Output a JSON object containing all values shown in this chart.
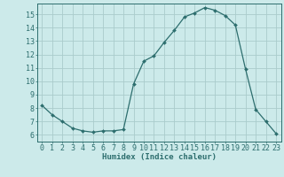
{
  "x": [
    0,
    1,
    2,
    3,
    4,
    5,
    6,
    7,
    8,
    9,
    10,
    11,
    12,
    13,
    14,
    15,
    16,
    17,
    18,
    19,
    20,
    21,
    22,
    23
  ],
  "y": [
    8.2,
    7.5,
    7.0,
    6.5,
    6.3,
    6.2,
    6.3,
    6.3,
    6.4,
    9.8,
    11.5,
    11.9,
    12.9,
    13.8,
    14.8,
    15.1,
    15.5,
    15.3,
    14.9,
    14.2,
    10.9,
    7.9,
    7.0,
    6.1
  ],
  "line_color": "#2d6e6e",
  "marker": "D",
  "marker_size": 2.0,
  "bg_color": "#cceaea",
  "grid_color": "#aacccc",
  "xlabel": "Humidex (Indice chaleur)",
  "xlim": [
    -0.5,
    23.5
  ],
  "ylim": [
    5.5,
    15.8
  ],
  "xticks": [
    0,
    1,
    2,
    3,
    4,
    5,
    6,
    7,
    8,
    9,
    10,
    11,
    12,
    13,
    14,
    15,
    16,
    17,
    18,
    19,
    20,
    21,
    22,
    23
  ],
  "yticks": [
    6,
    7,
    8,
    9,
    10,
    11,
    12,
    13,
    14,
    15
  ],
  "tick_color": "#2d6e6e",
  "label_fontsize": 6.5,
  "tick_fontsize": 6.0
}
